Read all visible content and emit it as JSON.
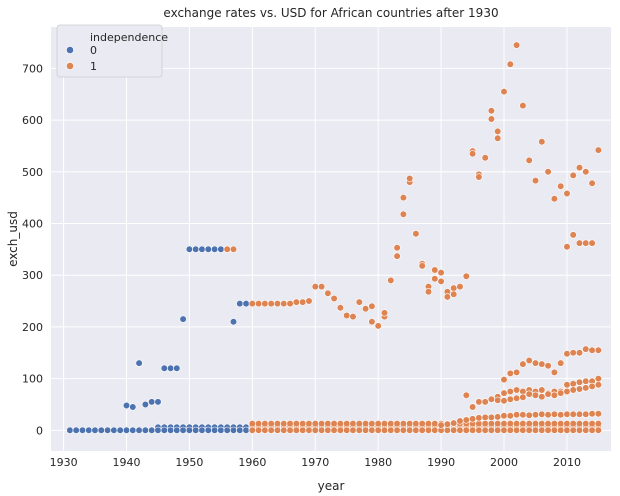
{
  "chart_data": {
    "type": "scatter",
    "title": "exchange rates vs. USD for African countries after 1930",
    "xlabel": "year",
    "ylabel": "exch_usd",
    "xlim": [
      1928,
      2017
    ],
    "ylim": [
      -40,
      780
    ],
    "xticks": [
      1930,
      1940,
      1950,
      1960,
      1970,
      1980,
      1990,
      2000,
      2010
    ],
    "yticks": [
      0,
      100,
      200,
      300,
      400,
      500,
      600,
      700
    ],
    "grid": true,
    "legend": {
      "title": "independence",
      "position": "top-left",
      "entries": [
        "0",
        "1"
      ]
    },
    "colors": {
      "0": "#4c72b0",
      "1": "#dd8452",
      "background": "#eaeaf2",
      "grid": "#ffffff"
    },
    "series": [
      {
        "name": "0",
        "points": [
          [
            1940,
            48
          ],
          [
            1941,
            45
          ],
          [
            1942,
            130
          ],
          [
            1943,
            50
          ],
          [
            1944,
            55
          ],
          [
            1945,
            55
          ],
          [
            1946,
            120
          ],
          [
            1947,
            120
          ],
          [
            1948,
            120
          ],
          [
            1949,
            215
          ],
          [
            1950,
            350
          ],
          [
            1951,
            350
          ],
          [
            1952,
            350
          ],
          [
            1953,
            350
          ],
          [
            1954,
            350
          ],
          [
            1955,
            350
          ],
          [
            1956,
            350
          ],
          [
            1957,
            210
          ],
          [
            1958,
            245
          ],
          [
            1959,
            245
          ]
        ],
        "baseline": {
          "from": 1931,
          "to": 1964,
          "value": 0
        },
        "low_band": {
          "from": 1945,
          "to": 1964,
          "values": [
            3,
            6
          ]
        }
      },
      {
        "name": "1",
        "points": [
          [
            1956,
            350
          ],
          [
            1957,
            350
          ],
          [
            1960,
            245
          ],
          [
            1961,
            245
          ],
          [
            1962,
            245
          ],
          [
            1963,
            245
          ],
          [
            1964,
            245
          ],
          [
            1965,
            245
          ],
          [
            1966,
            245
          ],
          [
            1967,
            248
          ],
          [
            1968,
            248
          ],
          [
            1969,
            250
          ],
          [
            1970,
            278
          ],
          [
            1971,
            278
          ],
          [
            1972,
            265
          ],
          [
            1973,
            255
          ],
          [
            1974,
            237
          ],
          [
            1975,
            222
          ],
          [
            1976,
            220
          ],
          [
            1977,
            248
          ],
          [
            1978,
            235
          ],
          [
            1979,
            240
          ],
          [
            1979,
            210
          ],
          [
            1980,
            202
          ],
          [
            1981,
            220
          ],
          [
            1981,
            227
          ],
          [
            1982,
            290
          ],
          [
            1983,
            337
          ],
          [
            1983,
            353
          ],
          [
            1984,
            418
          ],
          [
            1984,
            450
          ],
          [
            1985,
            480
          ],
          [
            1985,
            487
          ],
          [
            1986,
            380
          ],
          [
            1987,
            322
          ],
          [
            1987,
            318
          ],
          [
            1988,
            278
          ],
          [
            1988,
            268
          ],
          [
            1989,
            310
          ],
          [
            1989,
            293
          ],
          [
            1990,
            305
          ],
          [
            1990,
            288
          ],
          [
            1991,
            268
          ],
          [
            1991,
            258
          ],
          [
            1992,
            275
          ],
          [
            1992,
            263
          ],
          [
            1993,
            278
          ],
          [
            1994,
            298
          ],
          [
            1995,
            540
          ],
          [
            1995,
            535
          ],
          [
            1996,
            495
          ],
          [
            1996,
            490
          ],
          [
            1997,
            527
          ],
          [
            1998,
            618
          ],
          [
            1998,
            602
          ],
          [
            1999,
            578
          ],
          [
            1999,
            565
          ],
          [
            2000,
            655
          ],
          [
            2001,
            708
          ],
          [
            2002,
            745
          ],
          [
            2003,
            628
          ],
          [
            2004,
            522
          ],
          [
            2005,
            483
          ],
          [
            2006,
            558
          ],
          [
            2007,
            500
          ],
          [
            2008,
            448
          ],
          [
            2009,
            472
          ],
          [
            2010,
            458
          ],
          [
            2010,
            355
          ],
          [
            2011,
            493
          ],
          [
            2011,
            378
          ],
          [
            2012,
            508
          ],
          [
            2012,
            362
          ],
          [
            2013,
            500
          ],
          [
            2013,
            362
          ],
          [
            2014,
            478
          ],
          [
            2014,
            362
          ],
          [
            2015,
            542
          ],
          [
            1994,
            68
          ],
          [
            1995,
            45
          ],
          [
            1996,
            55
          ],
          [
            1997,
            55
          ],
          [
            1998,
            60
          ],
          [
            1999,
            65
          ],
          [
            2000,
            98
          ],
          [
            2001,
            110
          ],
          [
            2002,
            112
          ],
          [
            2003,
            128
          ],
          [
            2004,
            135
          ],
          [
            2005,
            130
          ],
          [
            2006,
            128
          ],
          [
            2007,
            125
          ],
          [
            2008,
            112
          ],
          [
            2009,
            130
          ],
          [
            2010,
            148
          ],
          [
            2011,
            150
          ],
          [
            2012,
            150
          ],
          [
            2013,
            157
          ],
          [
            2014,
            155
          ],
          [
            2015,
            155
          ],
          [
            1999,
            58
          ],
          [
            2000,
            72
          ],
          [
            2001,
            75
          ],
          [
            2002,
            78
          ],
          [
            2003,
            75
          ],
          [
            2004,
            78
          ],
          [
            2005,
            75
          ],
          [
            2006,
            78
          ],
          [
            2007,
            72
          ],
          [
            2008,
            75
          ],
          [
            2009,
            75
          ],
          [
            2010,
            88
          ],
          [
            2011,
            90
          ],
          [
            2012,
            93
          ],
          [
            2013,
            95
          ],
          [
            2014,
            95
          ],
          [
            2015,
            100
          ],
          [
            2000,
            57
          ],
          [
            2001,
            60
          ],
          [
            2002,
            62
          ],
          [
            2003,
            64
          ],
          [
            2004,
            70
          ],
          [
            2005,
            68
          ],
          [
            2006,
            65
          ],
          [
            2007,
            70
          ],
          [
            2008,
            68
          ],
          [
            2009,
            72
          ],
          [
            2010,
            75
          ],
          [
            2011,
            78
          ],
          [
            2012,
            80
          ],
          [
            2013,
            82
          ],
          [
            2014,
            85
          ],
          [
            2015,
            88
          ],
          [
            1990,
            10
          ],
          [
            1991,
            12
          ],
          [
            1992,
            14
          ],
          [
            1993,
            18
          ],
          [
            1994,
            20
          ],
          [
            1995,
            22
          ],
          [
            1996,
            24
          ],
          [
            1997,
            25
          ],
          [
            1998,
            25
          ],
          [
            1999,
            26
          ],
          [
            2000,
            28
          ],
          [
            2001,
            28
          ],
          [
            2002,
            30
          ],
          [
            2003,
            30
          ],
          [
            2004,
            29
          ],
          [
            2005,
            30
          ],
          [
            2006,
            31
          ],
          [
            2007,
            30
          ],
          [
            2008,
            31
          ],
          [
            2009,
            30
          ],
          [
            2010,
            31
          ],
          [
            2011,
            31
          ],
          [
            2012,
            31
          ],
          [
            2013,
            31
          ],
          [
            2014,
            32
          ],
          [
            2015,
            32
          ]
        ],
        "baseline": {
          "from": 1960,
          "to": 2015,
          "value": 0
        },
        "low_band": {
          "from": 1960,
          "to": 2015,
          "values": [
            2,
            4,
            6,
            9,
            13
          ]
        }
      }
    ]
  }
}
